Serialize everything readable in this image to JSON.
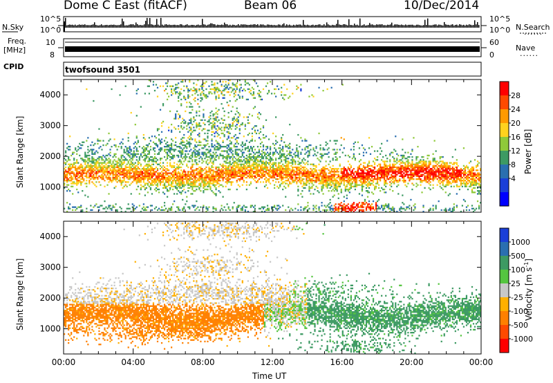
{
  "header": {
    "radar": "Dome C East (fitACF)",
    "beam": "Beam 06",
    "date": "10/Dec/2014"
  },
  "top_panels": {
    "nsky_label": "N.Sky",
    "nsky_ticks": [
      "10^5",
      "10^0"
    ],
    "nsearch_label": "N.Search",
    "nsearch_ticks": [
      "10^5",
      "10^0"
    ],
    "freq_label": "Freq.",
    "freq_unit": "[MHz]",
    "freq_ticks": [
      "10",
      "8"
    ],
    "nave_label": "Nave",
    "nave_ticks": [
      "60",
      "0"
    ],
    "cpid_label": "CPID",
    "cpid_value": "twofsound 3501",
    "dots": "......"
  },
  "chart_data": [
    {
      "type": "heatmap",
      "name": "power",
      "ylabel": "Slant Range [km]",
      "ylim": [
        180,
        4500
      ],
      "yticks": [
        "4000",
        "3000",
        "2000",
        "1000"
      ],
      "xlim": [
        0,
        24
      ],
      "colorbar": {
        "label": "Power [dB]",
        "tick_labels": [
          "28",
          "24",
          "20",
          "16",
          "12",
          "8",
          "4"
        ],
        "colors": [
          "#ff0000",
          "#ff4a00",
          "#ff9a00",
          "#ffd21e",
          "#8fc93a",
          "#3d9a63",
          "#2a6fb0",
          "#1a3fd8",
          "#0000ff"
        ]
      }
    },
    {
      "type": "heatmap",
      "name": "velocity",
      "ylabel": "Slant Range [km]",
      "ylim": [
        180,
        4500
      ],
      "yticks": [
        "4000",
        "3000",
        "2000",
        "1000"
      ],
      "xlim": [
        0,
        24
      ],
      "xlabel": "Time UT",
      "xticks": [
        "00:00",
        "04:00",
        "08:00",
        "12:00",
        "16:00",
        "20:00",
        "00:00"
      ],
      "colorbar": {
        "label": "Velocity [m s",
        "label_sup": "-1",
        "label_end": "]",
        "tick_labels": [
          "1000",
          "500",
          "100",
          "25",
          "-25",
          "-100",
          "-500",
          "-1000"
        ],
        "colors": [
          "#1a3fd8",
          "#2a6fb0",
          "#3d9a63",
          "#55c540",
          "#c8c8c8",
          "#ffb000",
          "#ff8000",
          "#ff4a00",
          "#ff0000"
        ]
      }
    }
  ]
}
